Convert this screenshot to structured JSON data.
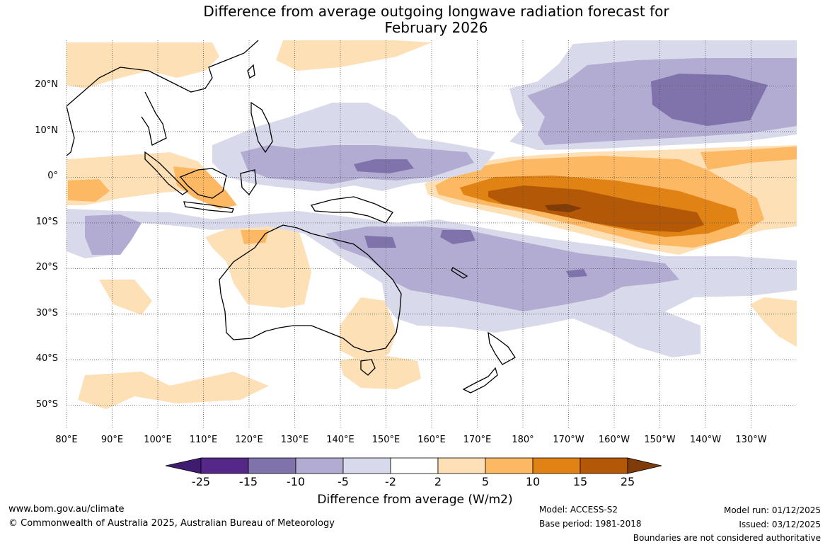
{
  "title": {
    "line1": "Difference from average outgoing longwave radiation forecast for",
    "line2": "February 2026"
  },
  "map": {
    "lat_labels": [
      "20°N",
      "10°N",
      "0°",
      "10°S",
      "20°S",
      "30°S",
      "40°S",
      "50°S"
    ],
    "lon_labels": [
      "80°E",
      "90°E",
      "100°E",
      "110°E",
      "120°E",
      "130°E",
      "140°E",
      "150°E",
      "160°E",
      "170°E",
      "180°",
      "170°W",
      "160°W",
      "150°W",
      "140°W",
      "130°W"
    ],
    "lat_range": [
      -55,
      30
    ],
    "lon_range": [
      80,
      240
    ]
  },
  "colorbar": {
    "title": "Difference from average (W/m2)",
    "ticks": [
      "-25",
      "-15",
      "-10",
      "-5",
      "-2",
      "2",
      "5",
      "10",
      "15",
      "25"
    ],
    "colors": [
      "#3f1c70",
      "#542788",
      "#8073ac",
      "#b2abd2",
      "#d8daeb",
      "#ffffff",
      "#fee0b6",
      "#fdb863",
      "#e08214",
      "#b35806",
      "#7f3b08"
    ]
  },
  "footer": {
    "website": "www.bom.gov.au/climate",
    "copyright": "© Commonwealth of Australia 2025, Australian Bureau of Meteorology",
    "model": "Model: ACCESS-S2",
    "base_period": "Base period: 1981-2018",
    "model_run": "Model run: 01/12/2025",
    "issued": "Issued: 03/12/2025",
    "disclaimer": "Boundaries are not considered authoritative"
  }
}
